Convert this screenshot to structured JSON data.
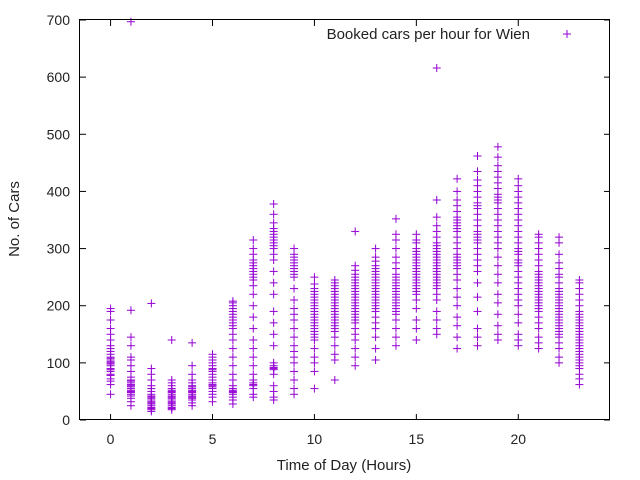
{
  "chart_data": {
    "type": "scatter",
    "title": "",
    "xlabel": "Time of Day (Hours)",
    "ylabel": "No. of Cars",
    "xlim": [
      -1.5,
      24.5
    ],
    "ylim": [
      0,
      700
    ],
    "xticks": [
      0,
      5,
      10,
      15,
      20
    ],
    "yticks": [
      0,
      100,
      200,
      300,
      400,
      500,
      600,
      700
    ],
    "grid": false,
    "legend_position": "top-right",
    "color": "#9400d3",
    "series": [
      {
        "name": "Booked cars per hour for Wien",
        "points_by_hour": [
          {
            "hour": 0,
            "values": [
              45,
              62,
              68,
              72,
              78,
              80,
              85,
              88,
              90,
              95,
              98,
              100,
              102,
              105,
              108,
              110,
              115,
              120,
              125,
              130,
              140,
              150,
              160,
              175,
              190,
              195
            ]
          },
          {
            "hour": 1,
            "values": [
              25,
              32,
              38,
              42,
              45,
              48,
              50,
              52,
              55,
              58,
              60,
              62,
              65,
              68,
              70,
              75,
              85,
              95,
              105,
              110,
              130,
              145,
              192,
              697
            ]
          },
          {
            "hour": 2,
            "values": [
              15,
              18,
              20,
              22,
              25,
              28,
              30,
              32,
              35,
              38,
              40,
              42,
              45,
              50,
              55,
              60,
              70,
              80,
              90,
              204
            ]
          },
          {
            "hour": 3,
            "values": [
              18,
              20,
              22,
              25,
              28,
              30,
              32,
              35,
              38,
              40,
              42,
              45,
              48,
              50,
              52,
              55,
              60,
              65,
              70,
              140
            ]
          },
          {
            "hour": 4,
            "values": [
              25,
              30,
              35,
              38,
              40,
              42,
              45,
              48,
              50,
              52,
              55,
              58,
              60,
              65,
              70,
              80,
              95,
              135
            ]
          },
          {
            "hour": 5,
            "values": [
              32,
              40,
              45,
              50,
              55,
              58,
              60,
              62,
              65,
              70,
              75,
              80,
              85,
              88,
              90,
              95,
              100,
              105,
              110,
              115
            ]
          },
          {
            "hour": 6,
            "values": [
              28,
              35,
              40,
              45,
              48,
              50,
              52,
              55,
              60,
              70,
              80,
              95,
              110,
              125,
              140,
              150,
              160,
              165,
              170,
              175,
              180,
              185,
              190,
              195,
              200,
              205,
              208
            ]
          },
          {
            "hour": 7,
            "values": [
              40,
              45,
              55,
              60,
              62,
              65,
              70,
              80,
              95,
              110,
              125,
              140,
              160,
              180,
              200,
              220,
              235,
              245,
              250,
              255,
              260,
              265,
              270,
              275,
              280,
              290,
              300,
              315
            ]
          },
          {
            "hour": 8,
            "values": [
              35,
              40,
              50,
              60,
              80,
              88,
              90,
              92,
              95,
              100,
              130,
              150,
              170,
              190,
              220,
              240,
              260,
              280,
              290,
              300,
              305,
              310,
              315,
              320,
              325,
              330,
              335,
              345,
              360,
              378
            ]
          },
          {
            "hour": 9,
            "values": [
              45,
              55,
              70,
              85,
              100,
              110,
              120,
              130,
              145,
              160,
              175,
              185,
              195,
              210,
              230,
              250,
              255,
              260,
              265,
              270,
              275,
              280,
              285,
              290,
              300
            ]
          },
          {
            "hour": 10,
            "values": [
              55,
              85,
              100,
              110,
              125,
              140,
              145,
              150,
              155,
              160,
              165,
              170,
              175,
              180,
              185,
              190,
              195,
              200,
              205,
              210,
              215,
              220,
              225,
              230,
              238,
              250
            ]
          },
          {
            "hour": 11,
            "values": [
              70,
              105,
              115,
              130,
              145,
              155,
              160,
              165,
              170,
              175,
              180,
              185,
              190,
              195,
              200,
              205,
              210,
              215,
              220,
              225,
              230,
              235,
              240,
              245
            ]
          },
          {
            "hour": 12,
            "values": [
              95,
              110,
              125,
              140,
              150,
              160,
              170,
              175,
              180,
              185,
              190,
              195,
              200,
              205,
              210,
              215,
              220,
              225,
              230,
              235,
              240,
              245,
              250,
              255,
              262,
              270,
              330
            ]
          },
          {
            "hour": 13,
            "values": [
              105,
              125,
              145,
              160,
              170,
              180,
              190,
              195,
              200,
              205,
              210,
              215,
              220,
              225,
              230,
              235,
              240,
              245,
              250,
              255,
              260,
              265,
              270,
              278,
              285,
              300
            ]
          },
          {
            "hour": 14,
            "values": [
              130,
              145,
              160,
              175,
              185,
              190,
              195,
              200,
              205,
              210,
              215,
              220,
              225,
              230,
              235,
              240,
              245,
              250,
              255,
              265,
              275,
              285,
              300,
              315,
              325,
              352
            ]
          },
          {
            "hour": 15,
            "values": [
              140,
              160,
              175,
              195,
              210,
              220,
              225,
              230,
              235,
              240,
              245,
              250,
              255,
              260,
              265,
              270,
              275,
              280,
              285,
              290,
              295,
              300,
              310,
              315,
              325
            ]
          },
          {
            "hour": 16,
            "values": [
              150,
              160,
              175,
              190,
              210,
              220,
              230,
              235,
              240,
              245,
              250,
              255,
              260,
              265,
              270,
              275,
              280,
              285,
              290,
              295,
              300,
              305,
              310,
              320,
              330,
              340,
              355,
              385,
              616
            ]
          },
          {
            "hour": 17,
            "values": [
              125,
              145,
              165,
              180,
              200,
              215,
              230,
              245,
              255,
              265,
              270,
              275,
              280,
              285,
              290,
              300,
              310,
              320,
              330,
              335,
              340,
              345,
              350,
              355,
              365,
              375,
              385,
              400,
              422
            ]
          },
          {
            "hour": 18,
            "values": [
              130,
              145,
              160,
              190,
              215,
              240,
              260,
              270,
              280,
              290,
              300,
              310,
              315,
              320,
              325,
              330,
              340,
              350,
              360,
              370,
              375,
              380,
              390,
              400,
              410,
              420,
              435,
              462
            ]
          },
          {
            "hour": 19,
            "values": [
              140,
              150,
              165,
              185,
              205,
              220,
              240,
              255,
              270,
              285,
              300,
              310,
              320,
              330,
              340,
              350,
              360,
              370,
              380,
              385,
              390,
              395,
              405,
              415,
              425,
              435,
              445,
              460,
              478
            ]
          },
          {
            "hour": 20,
            "values": [
              130,
              140,
              150,
              170,
              185,
              200,
              210,
              220,
              230,
              240,
              250,
              260,
              270,
              275,
              280,
              290,
              295,
              300,
              310,
              320,
              330,
              340,
              350,
              360,
              370,
              380,
              390,
              400,
              410,
              422
            ]
          },
          {
            "hour": 21,
            "values": [
              125,
              135,
              145,
              160,
              170,
              180,
              190,
              195,
              200,
              205,
              210,
              215,
              220,
              225,
              230,
              235,
              240,
              245,
              250,
              255,
              260,
              270,
              280,
              290,
              300,
              310,
              320,
              325
            ]
          },
          {
            "hour": 22,
            "values": [
              100,
              110,
              125,
              135,
              145,
              150,
              155,
              160,
              165,
              170,
              175,
              180,
              185,
              190,
              195,
              200,
              205,
              210,
              215,
              220,
              225,
              230,
              240,
              250,
              255,
              265,
              275,
              290,
              310,
              320
            ]
          },
          {
            "hour": 23,
            "values": [
              62,
              72,
              80,
              90,
              95,
              100,
              105,
              110,
              115,
              120,
              125,
              130,
              135,
              140,
              145,
              150,
              155,
              160,
              165,
              170,
              175,
              180,
              185,
              190,
              200,
              210,
              220,
              230,
              240,
              245
            ]
          }
        ]
      }
    ]
  }
}
